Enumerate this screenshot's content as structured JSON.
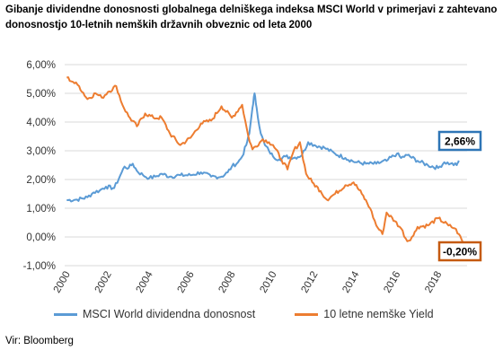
{
  "title": "Gibanje dividendne donosnosti globalnega delniškega indeksa MSCI World v primerjavi z zahtevano donosnostjo 10-letnih nemških državnih obveznic od leta 2000",
  "source": "Vir: Bloomberg",
  "colors": {
    "msci": "#5b9bd5",
    "bund": "#ed7d31",
    "grid": "#d9d9d9"
  },
  "chart_data": {
    "type": "line",
    "title": "Gibanje dividendne donosnosti globalnega delniškega indeksa MSCI World v primerjavi z zahtevano donosnostjo 10-letnih nemških državnih obveznic od leta 2000",
    "xlabel": "",
    "ylabel": "",
    "xlim": [
      2000,
      2019.2
    ],
    "ylim": [
      -1,
      6
    ],
    "x_ticks": [
      "2000",
      "2002",
      "2004",
      "2006",
      "2008",
      "2010",
      "2012",
      "2014",
      "2016",
      "2018"
    ],
    "y_ticks": [
      "-1,00%",
      "0,00%",
      "1,00%",
      "2,00%",
      "3,00%",
      "4,00%",
      "5,00%",
      "6,00%"
    ],
    "grid": "horizontal",
    "legend": "bottom",
    "series": [
      {
        "name": "MSCI World dividendna donosnost",
        "color": "#5b9bd5",
        "points": [
          [
            2000.0,
            1.28
          ],
          [
            2000.5,
            1.3
          ],
          [
            2001.0,
            1.38
          ],
          [
            2001.3,
            1.55
          ],
          [
            2001.6,
            1.62
          ],
          [
            2001.9,
            1.75
          ],
          [
            2002.3,
            1.7
          ],
          [
            2002.6,
            2.15
          ],
          [
            2002.8,
            2.45
          ],
          [
            2003.0,
            2.4
          ],
          [
            2003.2,
            2.55
          ],
          [
            2003.4,
            2.3
          ],
          [
            2003.7,
            2.15
          ],
          [
            2004.0,
            2.05
          ],
          [
            2004.3,
            2.1
          ],
          [
            2004.6,
            2.2
          ],
          [
            2005.0,
            2.1
          ],
          [
            2005.5,
            2.15
          ],
          [
            2006.0,
            2.15
          ],
          [
            2006.5,
            2.25
          ],
          [
            2007.0,
            2.1
          ],
          [
            2007.5,
            2.1
          ],
          [
            2007.8,
            2.25
          ],
          [
            2008.0,
            2.45
          ],
          [
            2008.3,
            2.6
          ],
          [
            2008.5,
            2.8
          ],
          [
            2008.7,
            3.2
          ],
          [
            2008.85,
            3.6
          ],
          [
            2009.0,
            4.5
          ],
          [
            2009.1,
            5.0
          ],
          [
            2009.2,
            4.5
          ],
          [
            2009.4,
            3.6
          ],
          [
            2009.6,
            3.2
          ],
          [
            2009.8,
            3.0
          ],
          [
            2010.0,
            2.8
          ],
          [
            2010.3,
            2.7
          ],
          [
            2010.6,
            2.8
          ],
          [
            2011.0,
            2.75
          ],
          [
            2011.4,
            2.85
          ],
          [
            2011.7,
            3.3
          ],
          [
            2012.0,
            3.2
          ],
          [
            2012.5,
            3.1
          ],
          [
            2013.0,
            2.9
          ],
          [
            2013.5,
            2.75
          ],
          [
            2014.0,
            2.6
          ],
          [
            2014.5,
            2.55
          ],
          [
            2015.0,
            2.55
          ],
          [
            2015.5,
            2.65
          ],
          [
            2016.0,
            2.9
          ],
          [
            2016.2,
            2.75
          ],
          [
            2016.5,
            2.85
          ],
          [
            2017.0,
            2.65
          ],
          [
            2017.5,
            2.5
          ],
          [
            2018.0,
            2.4
          ],
          [
            2018.3,
            2.6
          ],
          [
            2018.6,
            2.55
          ],
          [
            2018.9,
            2.5
          ],
          [
            2019.0,
            2.66
          ]
        ]
      },
      {
        "name": "10 letne nemške Yield",
        "color": "#ed7d31",
        "points": [
          [
            2000.0,
            5.55
          ],
          [
            2000.3,
            5.4
          ],
          [
            2000.6,
            5.25
          ],
          [
            2001.0,
            4.8
          ],
          [
            2001.4,
            5.0
          ],
          [
            2001.7,
            4.85
          ],
          [
            2002.0,
            5.05
          ],
          [
            2002.4,
            5.25
          ],
          [
            2002.7,
            4.6
          ],
          [
            2003.0,
            4.2
          ],
          [
            2003.4,
            3.85
          ],
          [
            2003.8,
            4.3
          ],
          [
            2004.2,
            4.15
          ],
          [
            2004.6,
            4.15
          ],
          [
            2005.0,
            3.6
          ],
          [
            2005.5,
            3.2
          ],
          [
            2006.0,
            3.45
          ],
          [
            2006.5,
            3.95
          ],
          [
            2007.0,
            4.05
          ],
          [
            2007.5,
            4.55
          ],
          [
            2008.0,
            4.15
          ],
          [
            2008.5,
            4.6
          ],
          [
            2008.8,
            3.5
          ],
          [
            2009.0,
            3.05
          ],
          [
            2009.5,
            3.4
          ],
          [
            2009.8,
            3.3
          ],
          [
            2010.0,
            3.2
          ],
          [
            2010.4,
            2.7
          ],
          [
            2010.7,
            2.35
          ],
          [
            2011.0,
            3.0
          ],
          [
            2011.3,
            3.3
          ],
          [
            2011.6,
            2.2
          ],
          [
            2011.9,
            1.9
          ],
          [
            2012.3,
            1.6
          ],
          [
            2012.6,
            1.3
          ],
          [
            2013.0,
            1.5
          ],
          [
            2013.5,
            1.8
          ],
          [
            2013.9,
            1.9
          ],
          [
            2014.3,
            1.5
          ],
          [
            2014.7,
            1.0
          ],
          [
            2015.0,
            0.4
          ],
          [
            2015.3,
            0.1
          ],
          [
            2015.5,
            0.85
          ],
          [
            2015.9,
            0.55
          ],
          [
            2016.2,
            0.3
          ],
          [
            2016.5,
            -0.15
          ],
          [
            2016.8,
            0.05
          ],
          [
            2017.0,
            0.35
          ],
          [
            2017.5,
            0.4
          ],
          [
            2018.0,
            0.65
          ],
          [
            2018.5,
            0.4
          ],
          [
            2018.8,
            0.3
          ],
          [
            2019.0,
            0.1
          ],
          [
            2019.2,
            -0.2
          ]
        ]
      }
    ],
    "annotations": [
      {
        "text": "2,66%",
        "series": "MSCI World dividendna donosnost",
        "x": 2019.0,
        "y": 2.66
      },
      {
        "text": "-0,20%",
        "series": "10 letne nemške Yield",
        "x": 2019.2,
        "y": -0.2
      }
    ]
  }
}
